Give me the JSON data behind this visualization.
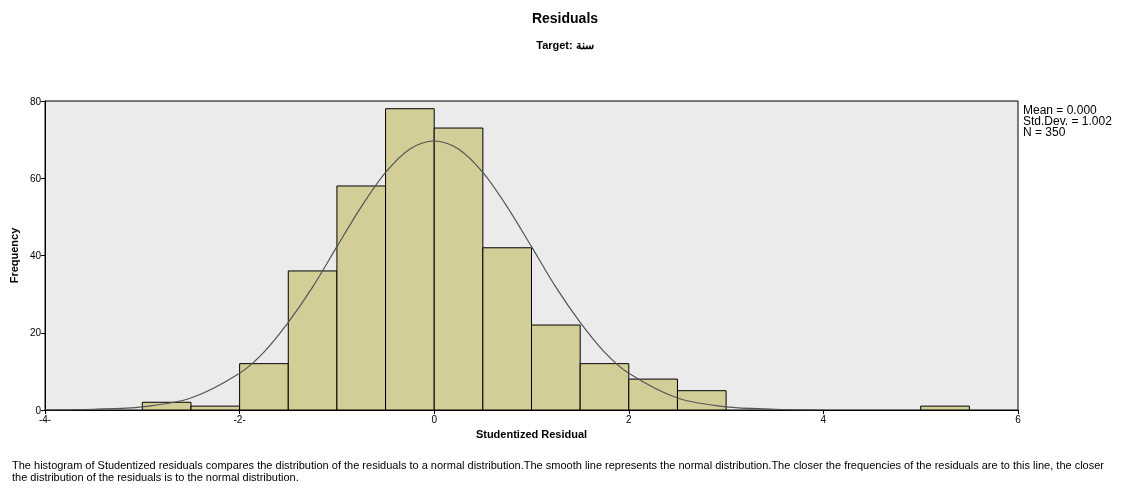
{
  "chart_data": {
    "type": "histogram",
    "title": "Residuals",
    "subtitle": "Target: سنة",
    "xlabel": "Studentized Residual",
    "ylabel": "Frequency",
    "bins": [
      -3,
      -2.5,
      -2,
      -1.5,
      -1,
      -0.5,
      0,
      0.5,
      1,
      1.5,
      2,
      2.5,
      3,
      3.5,
      4,
      4.5,
      5,
      5.5
    ],
    "values": [
      2,
      1,
      12,
      36,
      58,
      78,
      73,
      42,
      22,
      12,
      8,
      5,
      0,
      0,
      0,
      0,
      1
    ],
    "color": "#d3ce98",
    "series": [
      {
        "type": "line",
        "color": "#555555",
        "x": [
          -4,
          -3.5,
          -3,
          -2.5,
          -2,
          -1.75,
          -1.5,
          -1.25,
          -1,
          -0.75,
          -0.5,
          -0.25,
          0,
          0.25,
          0.5,
          0.75,
          1,
          1.25,
          1.5,
          1.75,
          2,
          2.5,
          3,
          3.5,
          4
        ],
        "values": [
          0,
          0.2,
          0.8,
          3.1,
          9.5,
          15,
          22.7,
          31.8,
          42.3,
          52.6,
          61.5,
          67.6,
          69.7,
          67.6,
          61.5,
          52.6,
          42.3,
          31.8,
          22.7,
          15,
          9.5,
          3.1,
          0.8,
          0.2,
          0
        ]
      }
    ],
    "xlim": [
      -4,
      6
    ],
    "xticks": [
      {
        "value": -4,
        "label": "-4-"
      },
      {
        "value": -2,
        "label": "-2-"
      },
      0,
      2,
      4,
      6
    ],
    "ylim": [
      0,
      80
    ],
    "yticks": [
      0,
      20,
      40,
      60,
      80
    ],
    "grid": false,
    "marker": "none",
    "annotations": [
      "Mean = 0.000",
      "Std.Dev. = 1.002",
      "N = 350",
      "The histogram of Studentized residuals compares the distribution of the residuals to a normal distribution.The smooth line represents the normal distribution.The closer the frequencies of the residuals are to this line, the closer the distribution of the residuals is to the normal distribution."
    ]
  }
}
